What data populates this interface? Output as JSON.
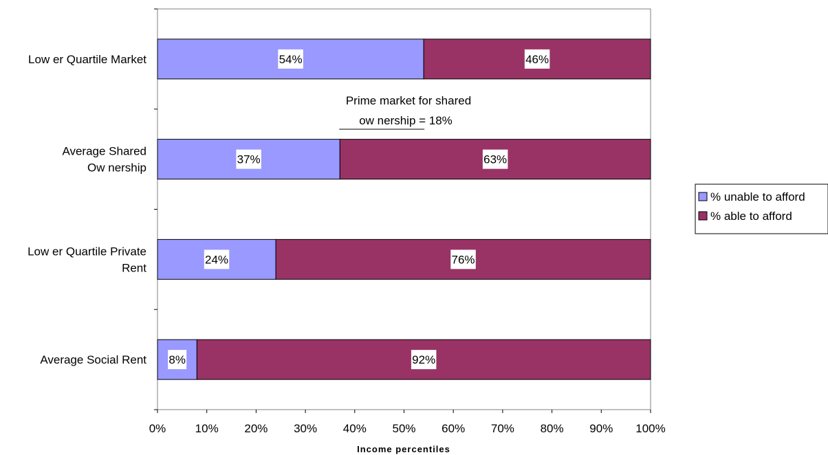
{
  "chart_data": {
    "type": "bar",
    "stacked": true,
    "orientation": "horizontal",
    "categories": [
      "Lower Quartile Market",
      "Average Shared Ownership",
      "Lower Quartile Private Rent",
      "Average Social Rent"
    ],
    "category_labels": [
      [
        "Low er Quartile Market"
      ],
      [
        "Average Shared",
        "Ow nership"
      ],
      [
        "Low er Quartile Private",
        "Rent"
      ],
      [
        "Average Social Rent"
      ]
    ],
    "series": [
      {
        "name": "% unable to afford",
        "color": "#9999ff",
        "values": [
          54,
          37,
          24,
          8
        ],
        "labels": [
          "54%",
          "37%",
          "24%",
          "8%"
        ]
      },
      {
        "name": "% able to afford",
        "color": "#993366",
        "values": [
          46,
          63,
          76,
          92
        ],
        "labels": [
          "46%",
          "63%",
          "76%",
          "92%"
        ]
      }
    ],
    "xlabel": "Income percentiles",
    "xlim": [
      0,
      100
    ],
    "x_ticks": [
      "0%",
      "10%",
      "20%",
      "30%",
      "40%",
      "50%",
      "60%",
      "70%",
      "80%",
      "90%",
      "100%"
    ],
    "grid": false,
    "legend_position": "right",
    "annotation": {
      "lines": [
        "Prime market for shared",
        "ow nership = 18%"
      ],
      "span": [
        37,
        54
      ]
    }
  }
}
